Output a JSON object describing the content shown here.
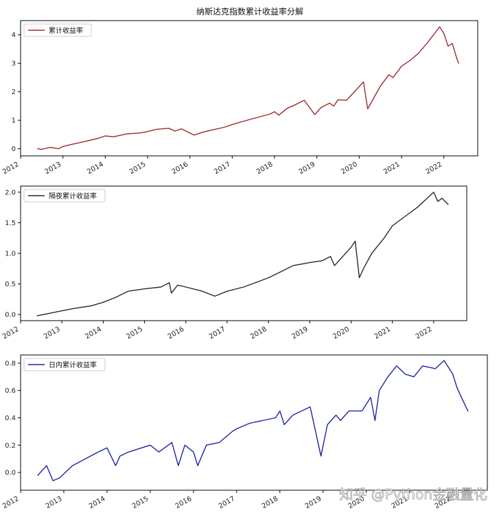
{
  "watermark": "知乎 @Python金融量化",
  "chart_data": [
    {
      "type": "line",
      "title": "纳斯达克指数累计收益率分解",
      "legend": {
        "label": "累计收益率",
        "placement": "upper-left"
      },
      "color": "#9b2a2f",
      "grid": false,
      "xlim": [
        2012.0,
        2022.8
      ],
      "ylim": [
        -0.25,
        4.5
      ],
      "yticks": [
        0,
        1,
        2,
        3,
        4
      ],
      "ytick_labels": [
        "0",
        "1",
        "2",
        "3",
        "4"
      ],
      "xticks": [
        2012,
        2013,
        2014,
        2015,
        2016,
        2017,
        2018,
        2019,
        2020,
        2021,
        2022
      ],
      "xtick_labels": [
        "2012",
        "2013",
        "2014",
        "2015",
        "2016",
        "2017",
        "2018",
        "2019",
        "2020",
        "2021",
        "2022"
      ],
      "series": [
        {
          "x": [
            2012.4,
            2012.5,
            2012.7,
            2012.9,
            2013.0,
            2013.2,
            2013.5,
            2013.8,
            2014.0,
            2014.2,
            2014.5,
            2014.8,
            2015.0,
            2015.2,
            2015.5,
            2015.65,
            2015.8,
            2016.0,
            2016.1,
            2016.3,
            2016.5,
            2016.8,
            2017.0,
            2017.3,
            2017.6,
            2017.9,
            2018.0,
            2018.1,
            2018.3,
            2018.5,
            2018.7,
            2018.95,
            2019.1,
            2019.3,
            2019.4,
            2019.5,
            2019.7,
            2019.95,
            2020.1,
            2020.2,
            2020.35,
            2020.5,
            2020.7,
            2020.8,
            2021.0,
            2021.2,
            2021.4,
            2021.6,
            2021.9,
            2022.0,
            2022.1,
            2022.2,
            2022.3,
            2022.35
          ],
          "y": [
            0.0,
            -0.02,
            0.05,
            0.0,
            0.08,
            0.15,
            0.25,
            0.35,
            0.45,
            0.42,
            0.52,
            0.55,
            0.6,
            0.68,
            0.72,
            0.62,
            0.7,
            0.55,
            0.48,
            0.58,
            0.65,
            0.75,
            0.85,
            0.98,
            1.1,
            1.22,
            1.3,
            1.18,
            1.42,
            1.55,
            1.7,
            1.2,
            1.45,
            1.6,
            1.5,
            1.72,
            1.7,
            2.1,
            2.35,
            1.4,
            1.8,
            2.2,
            2.6,
            2.5,
            2.9,
            3.1,
            3.35,
            3.7,
            4.28,
            4.05,
            3.6,
            3.7,
            3.2,
            3.0
          ]
        }
      ]
    },
    {
      "type": "line",
      "title": "",
      "legend": {
        "label": "隔夜累计收益率",
        "placement": "upper-left"
      },
      "color": "#2a2a2a",
      "grid": false,
      "xlim": [
        2012.0,
        2022.8
      ],
      "ylim": [
        -0.1,
        2.1
      ],
      "yticks": [
        0.0,
        0.5,
        1.0,
        1.5,
        2.0
      ],
      "ytick_labels": [
        "0.0",
        "0.5",
        "1.0",
        "1.5",
        "2.0"
      ],
      "xticks": [
        2012,
        2013,
        2014,
        2015,
        2016,
        2017,
        2018,
        2019,
        2020,
        2021,
        2022
      ],
      "xtick_labels": [
        "2012",
        "2013",
        "2014",
        "2015",
        "2016",
        "2017",
        "2018",
        "2019",
        "2020",
        "2021",
        "2022"
      ],
      "series": [
        {
          "x": [
            2012.4,
            2012.7,
            2013.0,
            2013.3,
            2013.7,
            2014.0,
            2014.3,
            2014.6,
            2015.0,
            2015.4,
            2015.6,
            2015.65,
            2015.8,
            2016.0,
            2016.4,
            2016.7,
            2017.0,
            2017.4,
            2017.8,
            2018.0,
            2018.3,
            2018.6,
            2019.0,
            2019.3,
            2019.5,
            2019.6,
            2020.0,
            2020.1,
            2020.2,
            2020.3,
            2020.5,
            2020.8,
            2021.0,
            2021.3,
            2021.6,
            2022.0,
            2022.1,
            2022.2,
            2022.35
          ],
          "y": [
            -0.02,
            0.02,
            0.06,
            0.1,
            0.14,
            0.2,
            0.28,
            0.38,
            0.42,
            0.45,
            0.52,
            0.35,
            0.48,
            0.45,
            0.38,
            0.3,
            0.38,
            0.45,
            0.55,
            0.6,
            0.7,
            0.8,
            0.85,
            0.88,
            0.95,
            0.8,
            1.1,
            1.2,
            0.6,
            0.75,
            1.0,
            1.25,
            1.45,
            1.6,
            1.75,
            2.0,
            1.85,
            1.9,
            1.8
          ]
        }
      ]
    },
    {
      "type": "line",
      "title": "",
      "legend": {
        "label": "日内累计收益率",
        "placement": "upper-left"
      },
      "color": "#1d24a3",
      "grid": false,
      "xlim": [
        2012.0,
        2022.8
      ],
      "ylim": [
        -0.13,
        0.86
      ],
      "yticks": [
        0.0,
        0.2,
        0.4,
        0.6,
        0.8
      ],
      "ytick_labels": [
        "0.0",
        "0.2",
        "0.4",
        "0.6",
        "0.8"
      ],
      "xticks": [
        2012,
        2013,
        2014,
        2015,
        2016,
        2017,
        2018,
        2019,
        2020,
        2021,
        2022
      ],
      "xtick_labels": [
        "2012",
        "2013",
        "2014",
        "2015",
        "2016",
        "2017",
        "2018",
        "2019",
        "2020",
        "2021",
        "2022"
      ],
      "series": [
        {
          "x": [
            2012.4,
            2012.6,
            2012.75,
            2012.9,
            2013.2,
            2013.5,
            2013.8,
            2014.0,
            2014.2,
            2014.3,
            2014.5,
            2014.8,
            2015.0,
            2015.2,
            2015.5,
            2015.65,
            2015.8,
            2016.0,
            2016.1,
            2016.3,
            2016.6,
            2016.9,
            2017.0,
            2017.3,
            2017.6,
            2017.9,
            2018.0,
            2018.1,
            2018.3,
            2018.7,
            2018.95,
            2019.1,
            2019.3,
            2019.4,
            2019.6,
            2019.9,
            2020.1,
            2020.2,
            2020.3,
            2020.5,
            2020.7,
            2020.9,
            2021.1,
            2021.3,
            2021.6,
            2021.8,
            2022.0,
            2022.1,
            2022.2,
            2022.35
          ],
          "y": [
            -0.02,
            0.05,
            -0.06,
            -0.04,
            0.05,
            0.1,
            0.15,
            0.18,
            0.05,
            0.12,
            0.15,
            0.18,
            0.2,
            0.15,
            0.22,
            0.05,
            0.2,
            0.15,
            0.05,
            0.2,
            0.22,
            0.3,
            0.32,
            0.36,
            0.38,
            0.4,
            0.45,
            0.35,
            0.42,
            0.48,
            0.12,
            0.35,
            0.42,
            0.38,
            0.45,
            0.45,
            0.55,
            0.38,
            0.6,
            0.7,
            0.78,
            0.72,
            0.7,
            0.78,
            0.76,
            0.82,
            0.72,
            0.62,
            0.55,
            0.45
          ]
        }
      ]
    }
  ]
}
